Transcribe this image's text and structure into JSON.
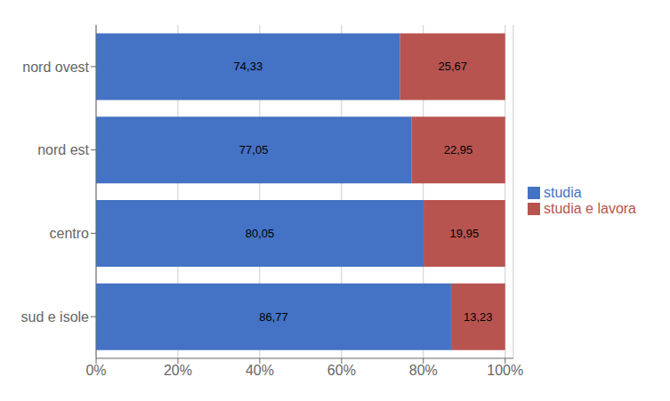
{
  "chart_data": {
    "type": "bar",
    "orientation": "horizontal",
    "stacked": true,
    "data_labels": true,
    "grid": true,
    "legend": "right",
    "categories": [
      "nord ovest",
      "nord est",
      "centro",
      "sud e isole"
    ],
    "series": [
      {
        "name": "studia",
        "color": "#4472C4",
        "values": [
          74.33,
          77.05,
          80.05,
          86.77
        ],
        "value_labels": [
          "74,33",
          "77,05",
          "80,05",
          "86,77"
        ]
      },
      {
        "name": "studia e lavora",
        "color": "#B85450",
        "values": [
          25.67,
          22.95,
          19.95,
          13.23
        ],
        "value_labels": [
          "25,67",
          "22,95",
          "19,95",
          "13,23"
        ]
      }
    ],
    "xlim": [
      0,
      102
    ],
    "xticks": [
      {
        "value": 0,
        "label": "0%"
      },
      {
        "value": 20,
        "label": "20%"
      },
      {
        "value": 40,
        "label": "40%"
      },
      {
        "value": 60,
        "label": "60%"
      },
      {
        "value": 80,
        "label": "80%"
      },
      {
        "value": 100,
        "label": "100%"
      }
    ]
  }
}
